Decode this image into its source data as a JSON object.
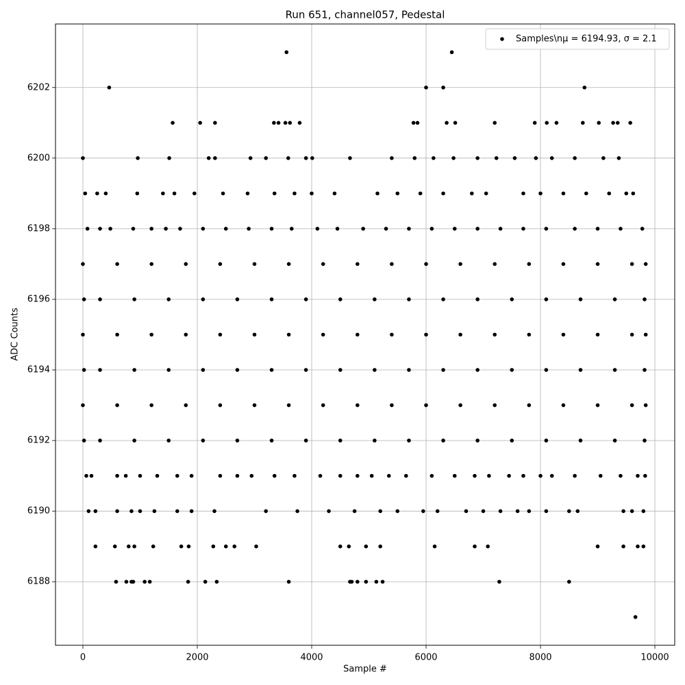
{
  "chart_data": {
    "type": "scatter",
    "title": "Run 651, channel057, Pedestal",
    "x_label": "Sample #",
    "y_label": "ADC Counts",
    "xlim": [
      -479,
      10347
    ],
    "ylim": [
      6186.2,
      6203.8
    ],
    "xticks": [
      0,
      2000,
      4000,
      6000,
      8000,
      10000
    ],
    "yticks": [
      6188,
      6190,
      6192,
      6194,
      6196,
      6198,
      6200,
      6202
    ],
    "grid": true,
    "legend": "upper-right",
    "series": [
      {
        "name": "Samples\\nμ = 6194.93, σ = 2.1",
        "color": "#000000",
        "x": [
          3560,
          6450,
          460,
          6000,
          6300,
          8770,
          1570,
          2050,
          2310,
          3340,
          3420,
          3540,
          3620,
          3790,
          5780,
          5850,
          6360,
          6510,
          7200,
          7900,
          8110,
          8280,
          8740,
          9020,
          9270,
          9350,
          9570,
          0,
          960,
          1510,
          2200,
          2310,
          2930,
          3200,
          3590,
          3900,
          4010,
          4670,
          5400,
          5800,
          6130,
          6480,
          6900,
          7230,
          7550,
          7920,
          8200,
          8600,
          9100,
          9370,
          40,
          250,
          400,
          950,
          1400,
          1600,
          1950,
          2450,
          2880,
          3350,
          3700,
          4000,
          4400,
          5150,
          5500,
          5900,
          6300,
          6800,
          7050,
          7700,
          8000,
          8400,
          8800,
          9200,
          9500,
          9620,
          80,
          300,
          480,
          880,
          1200,
          1450,
          1700,
          2100,
          2500,
          2900,
          3300,
          3650,
          4100,
          4450,
          4900,
          5300,
          5700,
          6100,
          6500,
          6900,
          7300,
          7700,
          8100,
          8600,
          9000,
          9400,
          9780,
          0,
          600,
          1200,
          1800,
          2400,
          3000,
          3600,
          4200,
          4800,
          5400,
          6000,
          6600,
          7200,
          7800,
          8400,
          9000,
          9600,
          9840,
          20,
          300,
          900,
          1500,
          2100,
          2700,
          3300,
          3900,
          4500,
          5100,
          5700,
          6300,
          6900,
          7500,
          8100,
          8700,
          9300,
          9820,
          0,
          600,
          1200,
          1800,
          2400,
          3000,
          3600,
          4200,
          4800,
          5400,
          6000,
          6600,
          7200,
          7800,
          8400,
          9000,
          9600,
          9840,
          20,
          300,
          900,
          1500,
          2100,
          2700,
          3300,
          3900,
          4500,
          5100,
          5700,
          6300,
          6900,
          7500,
          8100,
          8700,
          9300,
          9820,
          0,
          600,
          1200,
          1800,
          2400,
          3000,
          3600,
          4200,
          4800,
          5400,
          6000,
          6600,
          7200,
          7800,
          8400,
          9000,
          9600,
          9840,
          20,
          300,
          900,
          1500,
          2100,
          2700,
          3300,
          3900,
          4500,
          5100,
          5700,
          6300,
          6900,
          7500,
          8100,
          8700,
          9300,
          9820,
          60,
          150,
          600,
          750,
          1000,
          1300,
          1650,
          1900,
          2400,
          2700,
          2950,
          3350,
          3700,
          4150,
          4500,
          4800,
          5050,
          5350,
          5650,
          6100,
          6500,
          6850,
          7100,
          7450,
          7700,
          8000,
          8200,
          8600,
          9050,
          9400,
          9700,
          9830,
          100,
          220,
          600,
          850,
          1000,
          1250,
          1650,
          1900,
          2300,
          3200,
          3750,
          4300,
          4750,
          5200,
          5500,
          5950,
          6200,
          6700,
          7000,
          7300,
          7600,
          7800,
          8100,
          8500,
          8650,
          9450,
          9600,
          9800,
          220,
          560,
          800,
          900,
          1230,
          1720,
          1850,
          2280,
          2500,
          2650,
          3030,
          4500,
          4650,
          4950,
          5200,
          6150,
          6850,
          7080,
          9000,
          9450,
          9700,
          9800,
          580,
          760,
          850,
          880,
          1080,
          1170,
          1840,
          2140,
          2340,
          3600,
          4670,
          4700,
          4800,
          4950,
          5130,
          5240,
          7280,
          8500,
          9660
        ],
        "values": [
          6203,
          6203,
          6202,
          6202,
          6202,
          6202,
          6201,
          6201,
          6201,
          6201,
          6201,
          6201,
          6201,
          6201,
          6201,
          6201,
          6201,
          6201,
          6201,
          6201,
          6201,
          6201,
          6201,
          6201,
          6201,
          6201,
          6201,
          6200,
          6200,
          6200,
          6200,
          6200,
          6200,
          6200,
          6200,
          6200,
          6200,
          6200,
          6200,
          6200,
          6200,
          6200,
          6200,
          6200,
          6200,
          6200,
          6200,
          6200,
          6200,
          6200,
          6199,
          6199,
          6199,
          6199,
          6199,
          6199,
          6199,
          6199,
          6199,
          6199,
          6199,
          6199,
          6199,
          6199,
          6199,
          6199,
          6199,
          6199,
          6199,
          6199,
          6199,
          6199,
          6199,
          6199,
          6199,
          6199,
          6198,
          6198,
          6198,
          6198,
          6198,
          6198,
          6198,
          6198,
          6198,
          6198,
          6198,
          6198,
          6198,
          6198,
          6198,
          6198,
          6198,
          6198,
          6198,
          6198,
          6198,
          6198,
          6198,
          6198,
          6198,
          6198,
          6198,
          6197,
          6197,
          6197,
          6197,
          6197,
          6197,
          6197,
          6197,
          6197,
          6197,
          6197,
          6197,
          6197,
          6197,
          6197,
          6197,
          6197,
          6197,
          6196,
          6196,
          6196,
          6196,
          6196,
          6196,
          6196,
          6196,
          6196,
          6196,
          6196,
          6196,
          6196,
          6196,
          6196,
          6196,
          6196,
          6196,
          6195,
          6195,
          6195,
          6195,
          6195,
          6195,
          6195,
          6195,
          6195,
          6195,
          6195,
          6195,
          6195,
          6195,
          6195,
          6195,
          6195,
          6195,
          6194,
          6194,
          6194,
          6194,
          6194,
          6194,
          6194,
          6194,
          6194,
          6194,
          6194,
          6194,
          6194,
          6194,
          6194,
          6194,
          6194,
          6194,
          6193,
          6193,
          6193,
          6193,
          6193,
          6193,
          6193,
          6193,
          6193,
          6193,
          6193,
          6193,
          6193,
          6193,
          6193,
          6193,
          6193,
          6193,
          6192,
          6192,
          6192,
          6192,
          6192,
          6192,
          6192,
          6192,
          6192,
          6192,
          6192,
          6192,
          6192,
          6192,
          6192,
          6192,
          6192,
          6192,
          6191,
          6191,
          6191,
          6191,
          6191,
          6191,
          6191,
          6191,
          6191,
          6191,
          6191,
          6191,
          6191,
          6191,
          6191,
          6191,
          6191,
          6191,
          6191,
          6191,
          6191,
          6191,
          6191,
          6191,
          6191,
          6191,
          6191,
          6191,
          6191,
          6191,
          6191,
          6191,
          6190,
          6190,
          6190,
          6190,
          6190,
          6190,
          6190,
          6190,
          6190,
          6190,
          6190,
          6190,
          6190,
          6190,
          6190,
          6190,
          6190,
          6190,
          6190,
          6190,
          6190,
          6190,
          6190,
          6190,
          6190,
          6190,
          6190,
          6190,
          6189,
          6189,
          6189,
          6189,
          6189,
          6189,
          6189,
          6189,
          6189,
          6189,
          6189,
          6189,
          6189,
          6189,
          6189,
          6189,
          6189,
          6189,
          6189,
          6189,
          6189,
          6189,
          6188,
          6188,
          6188,
          6188,
          6188,
          6188,
          6188,
          6188,
          6188,
          6188,
          6188,
          6188,
          6188,
          6188,
          6188,
          6188,
          6188,
          6188,
          6187
        ]
      }
    ]
  }
}
